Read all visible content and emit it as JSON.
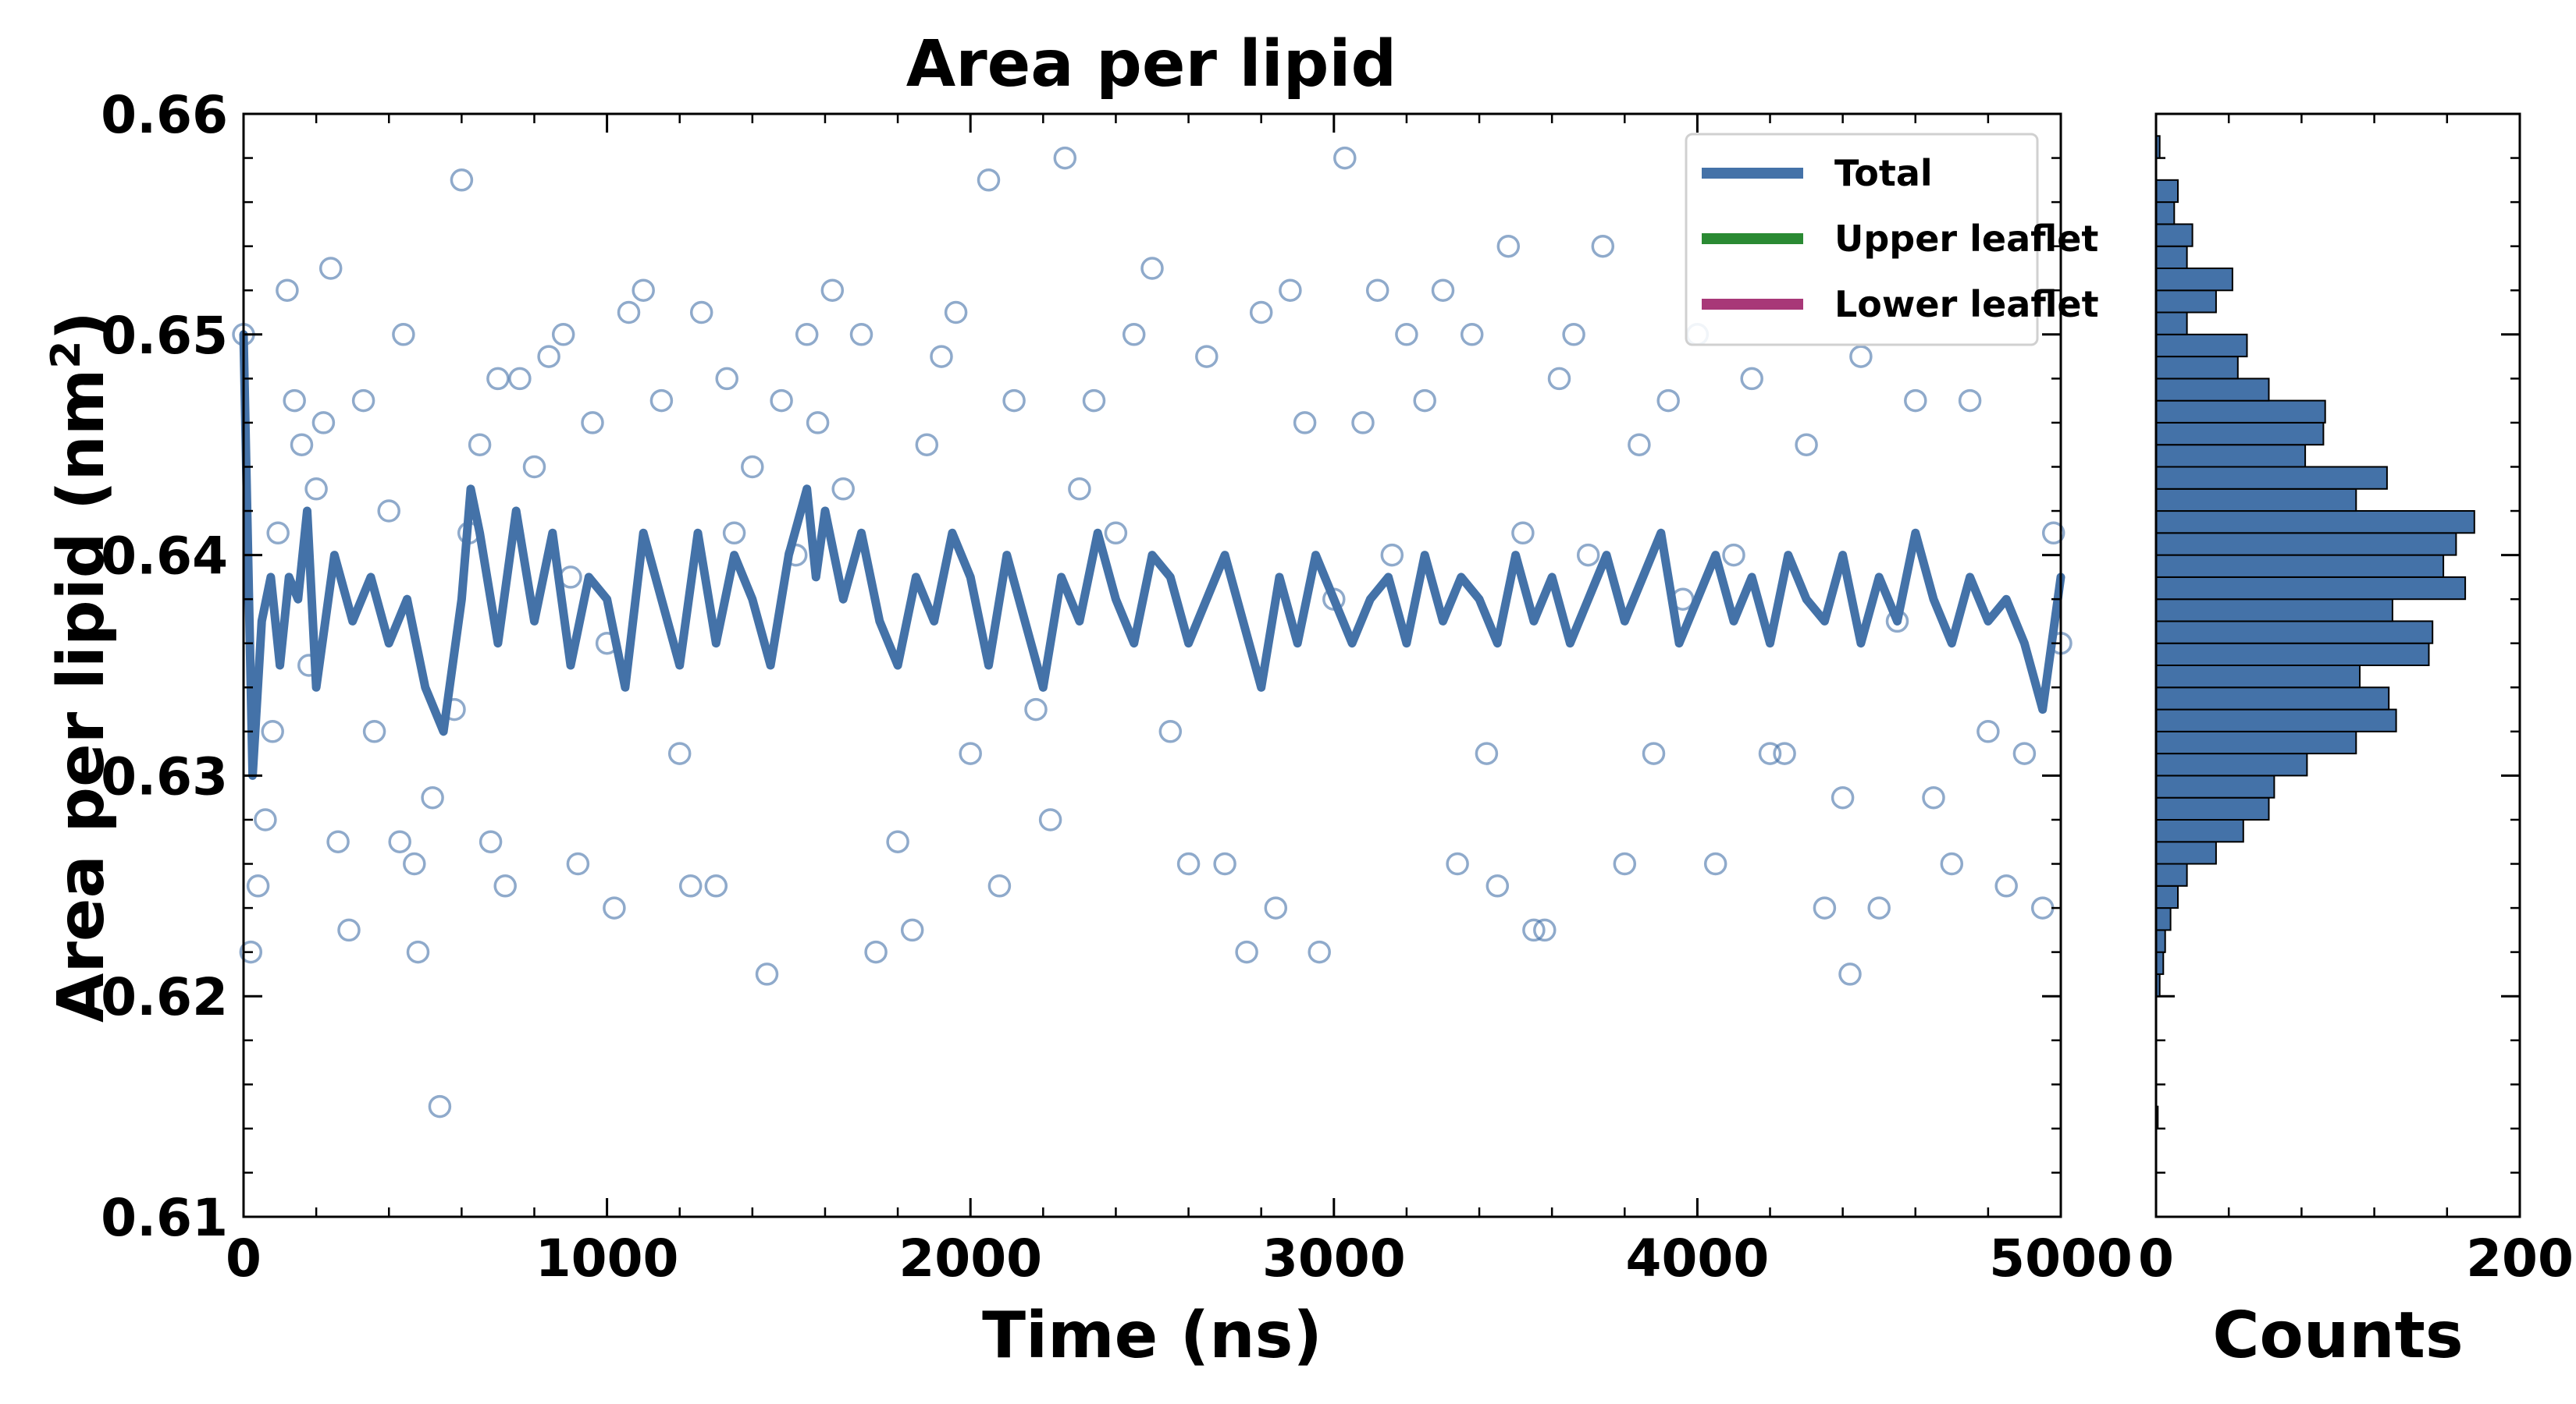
{
  "chart_data": [
    {
      "type": "scatter",
      "title": "Area per lipid",
      "xlabel": "Time (ns)",
      "ylabel": "Area per lipid (nm",
      "ylabel_sup": "2",
      "ylabel_close": ")",
      "xlim": [
        0,
        5000
      ],
      "ylim": [
        0.61,
        0.66
      ],
      "xticks": [
        "0",
        "1000",
        "2000",
        "3000",
        "4000",
        "5000"
      ],
      "yticks": [
        "0.61",
        "0.62",
        "0.63",
        "0.64",
        "0.65",
        "0.66"
      ],
      "grid": false,
      "legend_position": "top-right",
      "legend": [
        {
          "label": "Total",
          "color": "#4472a8"
        },
        {
          "label": "Upper leaflet",
          "color": "#2a8a33"
        },
        {
          "label": "Lower leaflet",
          "color": "#a83878"
        }
      ],
      "scatter_color": "#4472a8",
      "scatter_marker": "open-circle",
      "scatter_points": [
        [
          0,
          0.65
        ],
        [
          20,
          0.622
        ],
        [
          40,
          0.625
        ],
        [
          60,
          0.628
        ],
        [
          80,
          0.632
        ],
        [
          95,
          0.641
        ],
        [
          120,
          0.652
        ],
        [
          140,
          0.647
        ],
        [
          160,
          0.645
        ],
        [
          180,
          0.635
        ],
        [
          200,
          0.643
        ],
        [
          220,
          0.646
        ],
        [
          240,
          0.653
        ],
        [
          260,
          0.627
        ],
        [
          290,
          0.623
        ],
        [
          330,
          0.647
        ],
        [
          360,
          0.632
        ],
        [
          400,
          0.642
        ],
        [
          430,
          0.627
        ],
        [
          440,
          0.65
        ],
        [
          470,
          0.626
        ],
        [
          480,
          0.622
        ],
        [
          520,
          0.629
        ],
        [
          540,
          0.615
        ],
        [
          580,
          0.633
        ],
        [
          600,
          0.657
        ],
        [
          620,
          0.641
        ],
        [
          650,
          0.645
        ],
        [
          680,
          0.627
        ],
        [
          700,
          0.648
        ],
        [
          720,
          0.625
        ],
        [
          760,
          0.648
        ],
        [
          800,
          0.644
        ],
        [
          840,
          0.649
        ],
        [
          880,
          0.65
        ],
        [
          900,
          0.639
        ],
        [
          920,
          0.626
        ],
        [
          960,
          0.646
        ],
        [
          1000,
          0.636
        ],
        [
          1020,
          0.624
        ],
        [
          1060,
          0.651
        ],
        [
          1100,
          0.652
        ],
        [
          1150,
          0.647
        ],
        [
          1200,
          0.631
        ],
        [
          1230,
          0.625
        ],
        [
          1260,
          0.651
        ],
        [
          1300,
          0.625
        ],
        [
          1330,
          0.648
        ],
        [
          1350,
          0.641
        ],
        [
          1400,
          0.644
        ],
        [
          1440,
          0.621
        ],
        [
          1480,
          0.647
        ],
        [
          1520,
          0.64
        ],
        [
          1550,
          0.65
        ],
        [
          1580,
          0.646
        ],
        [
          1620,
          0.652
        ],
        [
          1650,
          0.643
        ],
        [
          1700,
          0.65
        ],
        [
          1740,
          0.622
        ],
        [
          1800,
          0.627
        ],
        [
          1840,
          0.623
        ],
        [
          1880,
          0.645
        ],
        [
          1920,
          0.649
        ],
        [
          1960,
          0.651
        ],
        [
          2000,
          0.631
        ],
        [
          2050,
          0.657
        ],
        [
          2080,
          0.625
        ],
        [
          2120,
          0.647
        ],
        [
          2180,
          0.633
        ],
        [
          2220,
          0.628
        ],
        [
          2260,
          0.658
        ],
        [
          2300,
          0.643
        ],
        [
          2340,
          0.647
        ],
        [
          2400,
          0.641
        ],
        [
          2450,
          0.65
        ],
        [
          2500,
          0.653
        ],
        [
          2550,
          0.632
        ],
        [
          2600,
          0.626
        ],
        [
          2650,
          0.649
        ],
        [
          2700,
          0.626
        ],
        [
          2760,
          0.622
        ],
        [
          2800,
          0.651
        ],
        [
          2840,
          0.624
        ],
        [
          2880,
          0.652
        ],
        [
          2920,
          0.646
        ],
        [
          2960,
          0.622
        ],
        [
          3000,
          0.638
        ],
        [
          3030,
          0.658
        ],
        [
          3080,
          0.646
        ],
        [
          3120,
          0.652
        ],
        [
          3160,
          0.64
        ],
        [
          3200,
          0.65
        ],
        [
          3250,
          0.647
        ],
        [
          3300,
          0.652
        ],
        [
          3340,
          0.626
        ],
        [
          3380,
          0.65
        ],
        [
          3420,
          0.631
        ],
        [
          3450,
          0.625
        ],
        [
          3480,
          0.654
        ],
        [
          3520,
          0.641
        ],
        [
          3550,
          0.623
        ],
        [
          3580,
          0.623
        ],
        [
          3620,
          0.648
        ],
        [
          3660,
          0.65
        ],
        [
          3700,
          0.64
        ],
        [
          3740,
          0.654
        ],
        [
          3800,
          0.626
        ],
        [
          3840,
          0.645
        ],
        [
          3880,
          0.631
        ],
        [
          3920,
          0.647
        ],
        [
          3960,
          0.638
        ],
        [
          4000,
          0.65
        ],
        [
          4050,
          0.626
        ],
        [
          4100,
          0.64
        ],
        [
          4150,
          0.648
        ],
        [
          4200,
          0.631
        ],
        [
          4240,
          0.631
        ],
        [
          4300,
          0.645
        ],
        [
          4350,
          0.624
        ],
        [
          4400,
          0.629
        ],
        [
          4420,
          0.621
        ],
        [
          4450,
          0.649
        ],
        [
          4500,
          0.624
        ],
        [
          4550,
          0.637
        ],
        [
          4600,
          0.647
        ],
        [
          4650,
          0.629
        ],
        [
          4700,
          0.626
        ],
        [
          4750,
          0.647
        ],
        [
          4800,
          0.632
        ],
        [
          4850,
          0.625
        ],
        [
          4900,
          0.631
        ],
        [
          4950,
          0.624
        ],
        [
          4980,
          0.641
        ],
        [
          5000,
          0.636
        ]
      ],
      "series": [
        {
          "name": "Total",
          "color": "#4472a8",
          "x": [
            0,
            25,
            50,
            75,
            100,
            125,
            150,
            175,
            200,
            250,
            300,
            350,
            400,
            450,
            500,
            550,
            600,
            625,
            650,
            700,
            750,
            800,
            850,
            900,
            950,
            1000,
            1050,
            1100,
            1150,
            1200,
            1250,
            1300,
            1350,
            1400,
            1450,
            1500,
            1550,
            1575,
            1600,
            1650,
            1700,
            1750,
            1800,
            1850,
            1900,
            1950,
            2000,
            2050,
            2100,
            2150,
            2200,
            2250,
            2300,
            2350,
            2400,
            2450,
            2500,
            2550,
            2600,
            2650,
            2700,
            2750,
            2800,
            2850,
            2900,
            2950,
            3000,
            3050,
            3100,
            3150,
            3200,
            3250,
            3300,
            3350,
            3400,
            3450,
            3500,
            3550,
            3600,
            3650,
            3700,
            3750,
            3800,
            3850,
            3900,
            3950,
            4000,
            4050,
            4100,
            4150,
            4200,
            4250,
            4300,
            4350,
            4400,
            4450,
            4500,
            4550,
            4600,
            4650,
            4700,
            4750,
            4800,
            4850,
            4900,
            4950,
            5000
          ],
          "y": [
            0.65,
            0.63,
            0.637,
            0.639,
            0.635,
            0.639,
            0.638,
            0.642,
            0.634,
            0.64,
            0.637,
            0.639,
            0.636,
            0.638,
            0.634,
            0.632,
            0.638,
            0.643,
            0.641,
            0.636,
            0.642,
            0.637,
            0.641,
            0.635,
            0.639,
            0.638,
            0.634,
            0.641,
            0.638,
            0.635,
            0.641,
            0.636,
            0.64,
            0.638,
            0.635,
            0.64,
            0.643,
            0.639,
            0.642,
            0.638,
            0.641,
            0.637,
            0.635,
            0.639,
            0.637,
            0.641,
            0.639,
            0.635,
            0.64,
            0.637,
            0.634,
            0.639,
            0.637,
            0.641,
            0.638,
            0.636,
            0.64,
            0.639,
            0.636,
            0.638,
            0.64,
            0.637,
            0.634,
            0.639,
            0.636,
            0.64,
            0.638,
            0.636,
            0.638,
            0.639,
            0.636,
            0.64,
            0.637,
            0.639,
            0.638,
            0.636,
            0.64,
            0.637,
            0.639,
            0.636,
            0.638,
            0.64,
            0.637,
            0.639,
            0.641,
            0.636,
            0.638,
            0.64,
            0.637,
            0.639,
            0.636,
            0.64,
            0.638,
            0.637,
            0.64,
            0.636,
            0.639,
            0.637,
            0.641,
            0.638,
            0.636,
            0.639,
            0.637,
            0.638,
            0.636,
            0.633,
            0.639
          ]
        }
      ]
    },
    {
      "type": "bar",
      "orientation": "horizontal",
      "xlabel": "Counts",
      "xlim": [
        0,
        200
      ],
      "xticks": [
        "0",
        "200"
      ],
      "ylim": [
        0.61,
        0.66
      ],
      "color": "#4472a8",
      "bin_width": 0.001,
      "bins": [
        0.614,
        0.615,
        0.616,
        0.617,
        0.618,
        0.619,
        0.62,
        0.621,
        0.622,
        0.623,
        0.624,
        0.625,
        0.626,
        0.627,
        0.628,
        0.629,
        0.63,
        0.631,
        0.632,
        0.633,
        0.634,
        0.635,
        0.636,
        0.637,
        0.638,
        0.639,
        0.64,
        0.641,
        0.642,
        0.643,
        0.644,
        0.645,
        0.646,
        0.647,
        0.648,
        0.649,
        0.65,
        0.651,
        0.652,
        0.653,
        0.654,
        0.655,
        0.656,
        0.657,
        0.658
      ],
      "values": [
        1,
        0,
        0,
        0,
        0,
        0,
        2,
        4,
        5,
        8,
        12,
        17,
        33,
        48,
        62,
        65,
        83,
        110,
        132,
        128,
        112,
        150,
        152,
        130,
        170,
        158,
        165,
        175,
        110,
        127,
        82,
        92,
        93,
        62,
        45,
        50,
        17,
        33,
        42,
        17,
        20,
        10,
        12,
        0,
        2
      ]
    }
  ]
}
